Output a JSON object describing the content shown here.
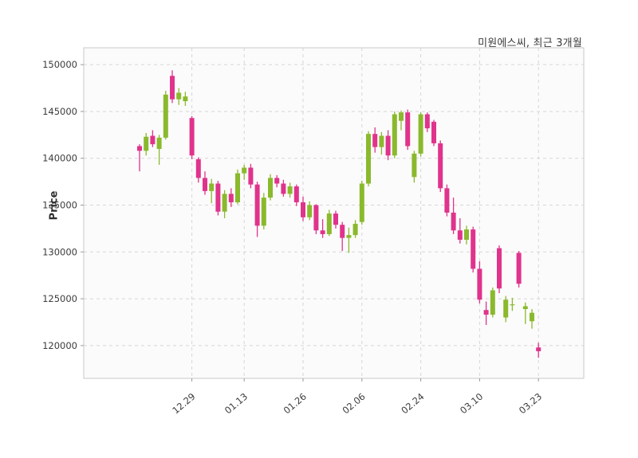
{
  "header": {
    "title": "미원에스씨, 최근 3개월"
  },
  "chart_data": {
    "type": "candlestick",
    "title": "미원에스씨, 최근 3개월",
    "ylabel": "Price",
    "ylim": [
      116500,
      151800
    ],
    "yticks": [
      120000,
      125000,
      130000,
      135000,
      140000,
      145000,
      150000
    ],
    "xticks": [
      {
        "index": 8,
        "label": "12.29"
      },
      {
        "index": 16,
        "label": "01.13"
      },
      {
        "index": 25,
        "label": "01.26"
      },
      {
        "index": 34,
        "label": "02.06"
      },
      {
        "index": 43,
        "label": "02.24"
      },
      {
        "index": 52,
        "label": "03.10"
      },
      {
        "index": 61,
        "label": "03.23"
      }
    ],
    "grid": "dashed",
    "legend": "none",
    "up_color": "#8ab92d",
    "down_color": "#e0338c",
    "axis_text_color": "#3c3c3c",
    "candles": [
      [
        141300,
        141500,
        138600,
        140800
      ],
      [
        140800,
        142700,
        140300,
        142300
      ],
      [
        142400,
        143000,
        141200,
        141500
      ],
      [
        141000,
        142500,
        139300,
        142200
      ],
      [
        142200,
        147200,
        142000,
        146800
      ],
      [
        148800,
        149400,
        145900,
        146300
      ],
      [
        146300,
        147500,
        145700,
        147000
      ],
      [
        146100,
        147100,
        145600,
        146600
      ],
      [
        144300,
        144500,
        139900,
        140300
      ],
      [
        139900,
        140100,
        137400,
        137900
      ],
      [
        137900,
        138600,
        136100,
        136500
      ],
      [
        136500,
        137800,
        135200,
        137300
      ],
      [
        137300,
        137600,
        133900,
        134300
      ],
      [
        134300,
        136600,
        133600,
        136200
      ],
      [
        136200,
        136800,
        134800,
        135300
      ],
      [
        135300,
        138800,
        135100,
        138400
      ],
      [
        138400,
        139300,
        137700,
        139000
      ],
      [
        139000,
        139400,
        136800,
        137200
      ],
      [
        137200,
        137500,
        131600,
        132800
      ],
      [
        132800,
        136300,
        132400,
        135800
      ],
      [
        135800,
        138300,
        135500,
        137900
      ],
      [
        137900,
        138200,
        136900,
        137300
      ],
      [
        137300,
        137700,
        135900,
        136200
      ],
      [
        136200,
        137400,
        135800,
        137000
      ],
      [
        137000,
        137200,
        134900,
        135300
      ],
      [
        135300,
        135900,
        133300,
        133700
      ],
      [
        133700,
        135400,
        133400,
        135000
      ],
      [
        135000,
        135100,
        131900,
        132300
      ],
      [
        132300,
        133500,
        131500,
        131900
      ],
      [
        131900,
        134500,
        131700,
        134100
      ],
      [
        134100,
        134400,
        132500,
        132900
      ],
      [
        132900,
        133200,
        130100,
        131500
      ],
      [
        131500,
        132600,
        129900,
        131800
      ],
      [
        131800,
        133400,
        131500,
        133000
      ],
      [
        133200,
        137600,
        132900,
        137300
      ],
      [
        137300,
        142900,
        137000,
        142600
      ],
      [
        142600,
        143300,
        140600,
        141200
      ],
      [
        141200,
        142800,
        140400,
        142400
      ],
      [
        142400,
        143000,
        139800,
        140300
      ],
      [
        140300,
        145000,
        140000,
        144700
      ],
      [
        144000,
        145100,
        143000,
        144900
      ],
      [
        144900,
        145200,
        140900,
        141300
      ],
      [
        138000,
        140800,
        137400,
        140500
      ],
      [
        140500,
        144900,
        140200,
        144700
      ],
      [
        144700,
        144900,
        142800,
        143200
      ],
      [
        143900,
        144100,
        141300,
        141600
      ],
      [
        141600,
        141900,
        136400,
        136800
      ],
      [
        136800,
        137200,
        133800,
        134200
      ],
      [
        134200,
        135800,
        131900,
        132300
      ],
      [
        132300,
        133600,
        130900,
        131300
      ],
      [
        131300,
        132800,
        130800,
        132400
      ],
      [
        132400,
        132700,
        127800,
        128200
      ],
      [
        128200,
        129000,
        124500,
        124900
      ],
      [
        123800,
        124700,
        122200,
        123300
      ],
      [
        123300,
        126200,
        123000,
        125900
      ],
      [
        130400,
        130700,
        125600,
        126100
      ],
      [
        123000,
        125300,
        122500,
        124900
      ],
      [
        124300,
        125100,
        123700,
        124400
      ],
      [
        129900,
        130100,
        126200,
        126600
      ],
      [
        123900,
        124600,
        122300,
        124200
      ],
      [
        122600,
        123900,
        121800,
        123500
      ],
      [
        119800,
        120300,
        118700,
        119400
      ]
    ]
  }
}
